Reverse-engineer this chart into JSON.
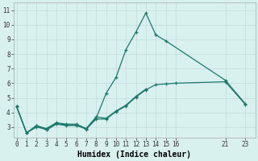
{
  "xlabel": "Humidex (Indice chaleur)",
  "bg_color": "#d8f0ee",
  "grid_color": "#c8dede",
  "line_color": "#1a7a6a",
  "series": [
    {
      "x": [
        0,
        1,
        2,
        3,
        4,
        5,
        6,
        7,
        8,
        9,
        10,
        11,
        12,
        13,
        14,
        15,
        21,
        23
      ],
      "y": [
        4.4,
        2.6,
        3.1,
        2.8,
        3.2,
        3.1,
        3.1,
        2.9,
        3.6,
        5.3,
        6.4,
        8.3,
        9.5,
        10.8,
        9.3,
        8.9,
        6.2,
        4.6
      ]
    },
    {
      "x": [
        0,
        1,
        2,
        3,
        4,
        5,
        6,
        7,
        8,
        9,
        10,
        11,
        12,
        13
      ],
      "y": [
        4.4,
        2.6,
        3.1,
        2.9,
        3.3,
        3.2,
        3.2,
        2.9,
        3.7,
        3.6,
        4.1,
        4.5,
        5.1,
        5.6
      ]
    },
    {
      "x": [
        0,
        1,
        2,
        3,
        4,
        5,
        6,
        7,
        8,
        9,
        10,
        11,
        12,
        13,
        14,
        15,
        16,
        21,
        23
      ],
      "y": [
        4.4,
        2.6,
        3.0,
        2.85,
        3.25,
        3.15,
        3.15,
        2.85,
        3.55,
        3.55,
        4.05,
        4.45,
        5.05,
        5.55,
        5.9,
        5.95,
        6.0,
        6.1,
        4.55
      ]
    }
  ],
  "xlim": [
    -0.3,
    24.0
  ],
  "ylim": [
    2.3,
    11.5
  ],
  "yticks": [
    3,
    4,
    5,
    6,
    7,
    8,
    9,
    10,
    11
  ],
  "xticks": [
    0,
    1,
    2,
    3,
    4,
    5,
    6,
    7,
    8,
    9,
    10,
    11,
    12,
    13,
    14,
    15,
    16,
    21,
    23
  ],
  "tick_fontsize": 5.5,
  "xlabel_fontsize": 7
}
